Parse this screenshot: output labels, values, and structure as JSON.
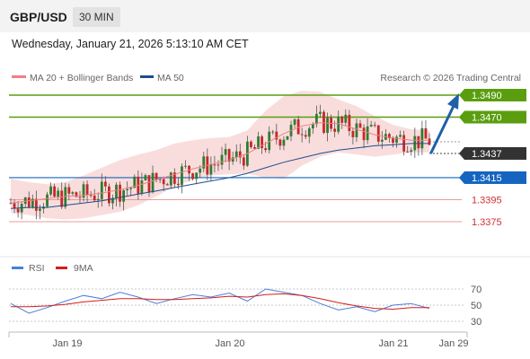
{
  "header": {
    "pair": "GBP/USD",
    "timeframe": "30 MIN"
  },
  "datetime": "Wednesday, January 21, 2026 5:13:10 AM CET",
  "legend": {
    "ma20": "MA 20 + Bollinger Bands",
    "ma50": "MA 50"
  },
  "attribution": "Research © 2026 Trading Central",
  "colors": {
    "resistance": "#5a9e0f",
    "support": "#1565c0",
    "target": "#d32f2f",
    "last": "#333333",
    "bollinger": "#f8d7d7",
    "ma20": "#f08080",
    "ma50": "#1e4d8c",
    "rsi": "#4a7fd8",
    "rsi_ma": "#d61c1c",
    "arrow": "#1f5fa8"
  },
  "chart_data": [
    {
      "type": "candlestick",
      "x_ticks": [
        "Jan 19",
        "Jan 20",
        "Jan 21",
        "Jan 29"
      ],
      "levels": [
        {
          "value": "1.3490",
          "kind": "resistance"
        },
        {
          "value": "1.3470",
          "kind": "resistance"
        },
        {
          "value": "1.3437",
          "kind": "last"
        },
        {
          "value": "1.3415",
          "kind": "support"
        },
        {
          "value": "1.3395",
          "kind": "target"
        },
        {
          "value": "1.3375",
          "kind": "target"
        }
      ],
      "series": [
        {
          "name": "MA 20 + Bollinger Bands"
        },
        {
          "name": "MA 50"
        }
      ],
      "ma20": [
        1.3392,
        1.3394,
        1.3396,
        1.3398,
        1.3399,
        1.3401,
        1.3404,
        1.3408,
        1.3413,
        1.3418,
        1.3423,
        1.3427,
        1.3431,
        1.3437,
        1.3446,
        1.3455,
        1.3462,
        1.3465,
        1.3464,
        1.3459,
        1.3454,
        1.3451,
        1.3449,
        1.3449
      ],
      "ma50": [
        1.3387,
        1.3388,
        1.3388,
        1.339,
        1.3392,
        1.3394,
        1.3397,
        1.34,
        1.3403,
        1.3406,
        1.3409,
        1.3412,
        1.3415,
        1.3419,
        1.3424,
        1.3429,
        1.3433,
        1.3437,
        1.344,
        1.3442,
        1.3444,
        1.3445,
        1.3446,
        1.3446
      ],
      "bb_upper": [
        1.3414,
        1.3411,
        1.3409,
        1.3411,
        1.3417,
        1.3424,
        1.3431,
        1.3436,
        1.344,
        1.3446,
        1.3449,
        1.3451,
        1.3452,
        1.3458,
        1.3476,
        1.3489,
        1.3494,
        1.3493,
        1.3486,
        1.348,
        1.3471,
        1.3463,
        1.3459,
        1.3458
      ],
      "bb_lower": [
        1.3383,
        1.3381,
        1.3378,
        1.3377,
        1.3378,
        1.3381,
        1.3384,
        1.339,
        1.3398,
        1.3407,
        1.3413,
        1.3417,
        1.3418,
        1.3419,
        1.3415,
        1.3414,
        1.3426,
        1.3434,
        1.3438,
        1.3436,
        1.3434,
        1.3436,
        1.3438,
        1.3438
      ]
    },
    {
      "type": "line",
      "series": [
        {
          "name": "RSI"
        },
        {
          "name": "9MA"
        }
      ],
      "y_ticks": [
        70,
        50,
        30
      ],
      "rsi": [
        52,
        40,
        47,
        55,
        62,
        58,
        66,
        60,
        52,
        58,
        63,
        60,
        65,
        55,
        70,
        66,
        62,
        52,
        44,
        48,
        42,
        50,
        52,
        46
      ],
      "rsi_ma": [
        48,
        48,
        49,
        51,
        54,
        56,
        58,
        58,
        57,
        57,
        58,
        59,
        61,
        60,
        63,
        64,
        62,
        58,
        53,
        49,
        46,
        45,
        47,
        47
      ]
    }
  ]
}
